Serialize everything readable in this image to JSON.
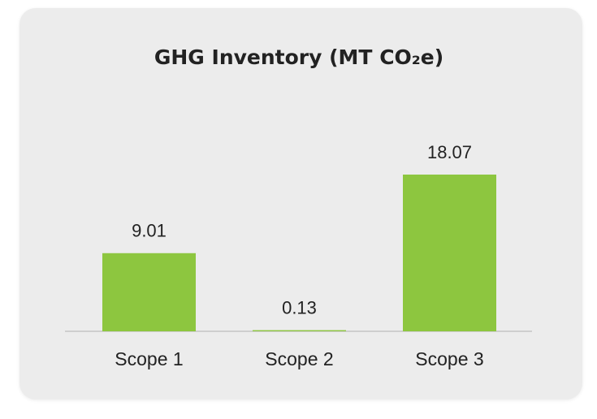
{
  "chart_data": {
    "type": "bar",
    "title": "GHG Inventory (MT CO₂e)",
    "categories": [
      "Scope 1",
      "Scope 2",
      "Scope 3"
    ],
    "values": [
      9.01,
      0.13,
      18.07
    ],
    "color": "#8dc63f"
  }
}
